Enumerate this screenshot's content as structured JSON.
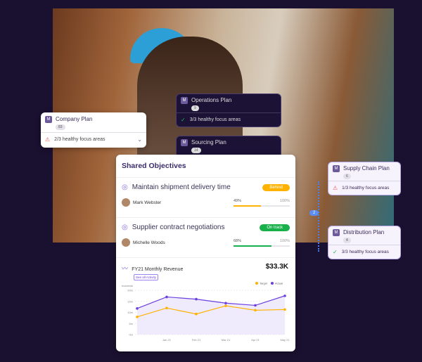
{
  "company_plan": {
    "title": "Company Plan",
    "count": "83",
    "status": "2/3 healthy focus areas"
  },
  "operations_plan": {
    "title": "Operations Plan",
    "count": "9",
    "status": "3/3 healthy focus areas"
  },
  "sourcing_plan": {
    "title": "Sourcing Plan",
    "count": "14"
  },
  "supply_chain_plan": {
    "title": "Supply Chain Plan",
    "count": "6",
    "status": "1/3 healthy focus areas"
  },
  "distribution_plan": {
    "title": "Distribution Plan",
    "count": "4",
    "status": "3/3 healthy focus areas"
  },
  "link_count": "2",
  "shared_objectives": {
    "title": "Shared Objectives",
    "items": [
      {
        "title": "Maintain shipment delivery time",
        "status": "Behind",
        "status_color": "#ffb300",
        "owner": "Mark Webster",
        "progress": 49,
        "progress_label": "49%",
        "max_label": "100%"
      },
      {
        "title": "Supplier contract negotiations",
        "status": "On track",
        "status_color": "#18b04a",
        "owner": "Michelle Woods",
        "progress": 68,
        "progress_label": "68%",
        "max_label": "100%"
      }
    ]
  },
  "revenue": {
    "title": "FY21 Monthly Revenue",
    "value": "$33.3K",
    "link": "See all Activity"
  },
  "chart_data": {
    "type": "line",
    "ylabel": "Incidents",
    "ylim": [
      0,
      20
    ],
    "yticks": [
      "0m",
      "5m",
      "10m",
      "15m",
      "20m"
    ],
    "xticks": [
      "Jan 21",
      "Feb 21",
      "Mar 21",
      "Apr 21",
      "May 21"
    ],
    "legend": "top-right",
    "grid": true,
    "series": [
      {
        "name": "Target",
        "color": "#ffb300",
        "values": [
          8,
          12,
          9.3,
          13,
          11,
          11.3
        ]
      },
      {
        "name": "Actual",
        "color": "#6b3fe0",
        "values": [
          11.8,
          17,
          16,
          14.2,
          13.2,
          17.5
        ]
      }
    ]
  }
}
